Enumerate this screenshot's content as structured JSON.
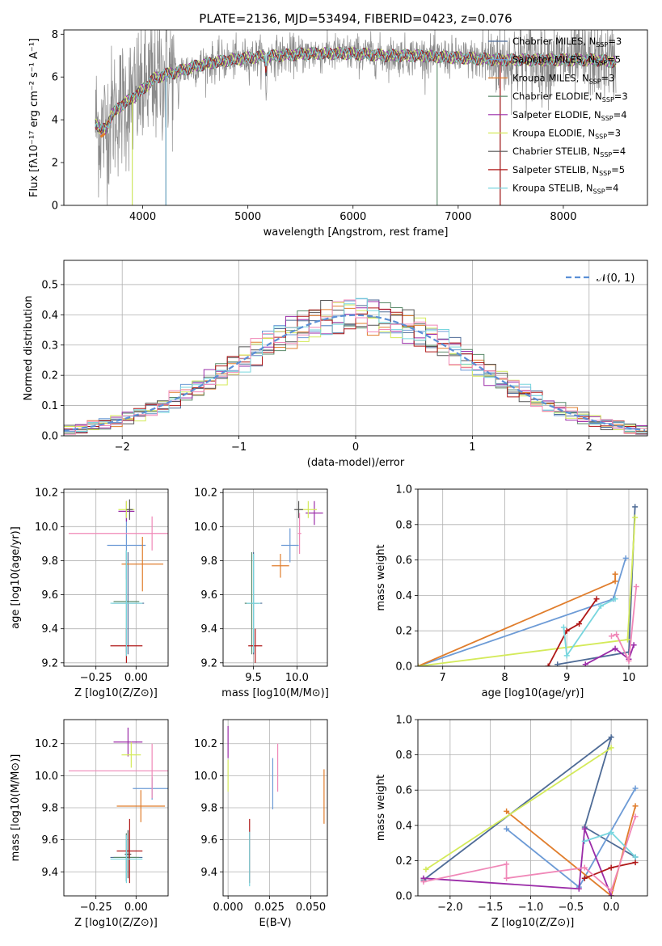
{
  "figure_title": "PLATE=2136, MJD=53494, FIBERID=0423, z=0.076",
  "models": [
    {
      "name": "Chabrier MILES",
      "nssp": "3",
      "color": "#4e6b96"
    },
    {
      "name": "Salpeter MILES",
      "nssp": "5",
      "color": "#6d9bd6"
    },
    {
      "name": "Kroupa MILES",
      "nssp": "3",
      "color": "#e07d2c"
    },
    {
      "name": "Chabrier ELODIE",
      "nssp": "3",
      "color": "#5b8a6a"
    },
    {
      "name": "Salpeter ELODIE",
      "nssp": "4",
      "color": "#9b2ca8"
    },
    {
      "name": "Kroupa ELODIE",
      "nssp": "3",
      "color": "#d4ea5a"
    },
    {
      "name": "Chabrier STELIB",
      "nssp": "4",
      "color": "#555555"
    },
    {
      "name": "Salpeter STELIB",
      "nssp": "5",
      "color": "#b01818"
    },
    {
      "name": "Kroupa STELIB",
      "nssp": "4",
      "color": "#78d6de"
    }
  ],
  "chart_data": [
    {
      "type": "line",
      "id": "spectrum",
      "xlabel": "wavelength [Angstrom, rest frame]",
      "ylabel": "Flux [f_λ 10^-17 erg cm^-2 s^-1 A^-1]",
      "xlim": [
        3250,
        8800
      ],
      "ylim": [
        0,
        8.2
      ],
      "xticks": [
        4000,
        5000,
        6000,
        7000,
        8000
      ],
      "yticks": [
        0,
        2,
        4,
        6,
        8
      ],
      "grid": false,
      "legend": "right",
      "continuum": {
        "x": [
          3550,
          3600,
          3650,
          3700,
          3800,
          3900,
          4000,
          4100,
          4200,
          4300,
          4500,
          4700,
          5000,
          5300,
          5600,
          6000,
          6300,
          6600,
          7000,
          7400,
          7700,
          8000,
          8300,
          8500
        ],
        "y": [
          3.9,
          3.5,
          3.6,
          4.2,
          4.7,
          5.0,
          5.4,
          5.9,
          6.1,
          6.2,
          6.5,
          6.7,
          6.9,
          7.0,
          7.1,
          7.1,
          7.0,
          7.0,
          6.9,
          6.8,
          6.8,
          6.8,
          6.8,
          6.7
        ]
      }
    },
    {
      "type": "bar",
      "id": "residuals",
      "xlabel": "(data-model)/error",
      "ylabel": "Normed distribution",
      "xlim": [
        -2.5,
        2.5
      ],
      "ylim": [
        0,
        0.58
      ],
      "xticks": [
        -2,
        -1,
        0,
        1,
        2
      ],
      "yticks": [
        0.0,
        0.1,
        0.2,
        0.3,
        0.4,
        0.5
      ],
      "grid": true,
      "legend": "top-right",
      "reference_label": "𝒩(0, 1)",
      "bin_width": 0.1
    },
    {
      "type": "scatter",
      "id": "age-vs-Z",
      "xlabel": "Z [log10(Z/Z⊙)]",
      "ylabel": "age  [log10(age/yr)]",
      "xlim": [
        -0.45,
        0.2
      ],
      "ylim": [
        9.18,
        10.22
      ],
      "xticks": [
        -0.25,
        0.0
      ],
      "xticklabels": [
        "−0.25",
        "0.00"
      ],
      "yticks": [
        9.2,
        9.4,
        9.6,
        9.8,
        10.0,
        10.2
      ],
      "grid": true,
      "points": [
        {
          "m": 0,
          "x": -0.05,
          "y": 9.55,
          "ex": 0.1,
          "ey": 0.3
        },
        {
          "m": 1,
          "x": -0.06,
          "y": 9.89,
          "ex": 0.12,
          "ey": 0.2
        },
        {
          "m": 2,
          "x": 0.04,
          "y": 9.78,
          "ex": 0.13,
          "ey": 0.16
        },
        {
          "m": 3,
          "x": -0.06,
          "y": 9.56,
          "ex": 0.08,
          "ey": 0.3
        },
        {
          "m": 4,
          "x": -0.06,
          "y": 10.09,
          "ex": 0.05,
          "ey": 0.06
        },
        {
          "m": 5,
          "x": -0.06,
          "y": 10.1,
          "ex": 0.05,
          "ey": 0.05
        },
        {
          "m": 6,
          "x": -0.04,
          "y": 10.1,
          "ex": 0.02,
          "ey": 0.06
        },
        {
          "m": 7,
          "x": -0.06,
          "y": 9.3,
          "ex": 0.1,
          "ey": 0.1
        },
        {
          "m": 8,
          "x": -0.06,
          "y": 9.55,
          "ex": 0.1,
          "ey": 0.31
        },
        {
          "m": 2,
          "x": 0.1,
          "y": 9.96,
          "ex": 0.52,
          "ey": 0.1,
          "c": "#f088b8"
        }
      ]
    },
    {
      "type": "scatter",
      "id": "age-vs-mass",
      "xlabel": "mass [log10(M/M⊙)]",
      "ylabel": "",
      "xlim": [
        9.15,
        10.35
      ],
      "ylim": [
        9.18,
        10.22
      ],
      "xticks": [
        9.5,
        10.0
      ],
      "xticklabels": [
        "9.5",
        "10.0"
      ],
      "yticks": [
        9.2,
        9.4,
        9.6,
        9.8,
        10.0,
        10.2
      ],
      "grid": true,
      "points": [
        {
          "m": 0,
          "x": 9.5,
          "y": 9.55,
          "ex": 0.1,
          "ey": 0.3
        },
        {
          "m": 1,
          "x": 9.92,
          "y": 9.89,
          "ex": 0.1,
          "ey": 0.1
        },
        {
          "m": 2,
          "x": 9.81,
          "y": 9.77,
          "ex": 0.1,
          "ey": 0.07
        },
        {
          "m": 3,
          "x": 9.48,
          "y": 9.55,
          "ex": 0.08,
          "ey": 0.3
        },
        {
          "m": 4,
          "x": 10.2,
          "y": 10.08,
          "ex": 0.1,
          "ey": 0.07
        },
        {
          "m": 5,
          "x": 10.13,
          "y": 10.1,
          "ex": 0.1,
          "ey": 0.05
        },
        {
          "m": 6,
          "x": 10.02,
          "y": 10.1,
          "ex": 0.05,
          "ey": 0.05
        },
        {
          "m": 7,
          "x": 9.52,
          "y": 9.3,
          "ex": 0.08,
          "ey": 0.1
        },
        {
          "m": 8,
          "x": 9.5,
          "y": 9.55,
          "ex": 0.08,
          "ey": 0.29
        },
        {
          "m": 2,
          "x": 10.03,
          "y": 9.96,
          "ex": 0.02,
          "ey": 0.12,
          "c": "#f088b8"
        }
      ]
    },
    {
      "type": "line",
      "id": "mass-weight-vs-age",
      "xlabel": "age  [log10(age/yr)]",
      "ylabel": "mass weight",
      "xlim": [
        6.6,
        10.3
      ],
      "ylim": [
        0,
        1.0
      ],
      "xticks": [
        7,
        8,
        9,
        10
      ],
      "yticks": [
        0.0,
        0.2,
        0.4,
        0.6,
        0.8,
        1.0
      ],
      "grid": true,
      "series": [
        {
          "m": 0,
          "points": [
            [
              8.85,
              0.01
            ],
            [
              10.0,
              0.08
            ],
            [
              10.1,
              0.9
            ]
          ]
        },
        {
          "m": 1,
          "points": [
            [
              6.6,
              0.0
            ],
            [
              9.75,
              0.38
            ],
            [
              9.95,
              0.61
            ]
          ]
        },
        {
          "m": 2,
          "points": [
            [
              6.6,
              0.0
            ],
            [
              9.78,
              0.48
            ],
            [
              9.78,
              0.52
            ]
          ]
        },
        {
          "m": 4,
          "points": [
            [
              9.3,
              0.01
            ],
            [
              9.78,
              0.1
            ],
            [
              10.0,
              0.04
            ],
            [
              10.08,
              0.12
            ]
          ]
        },
        {
          "m": 5,
          "points": [
            [
              6.6,
              0.0
            ],
            [
              9.98,
              0.15
            ],
            [
              10.1,
              0.84
            ]
          ]
        },
        {
          "m": 7,
          "points": [
            [
              8.7,
              0.0
            ],
            [
              9.0,
              0.2
            ],
            [
              9.2,
              0.24
            ],
            [
              9.48,
              0.38
            ]
          ]
        },
        {
          "m": 8,
          "points": [
            [
              8.95,
              0.22
            ],
            [
              9.0,
              0.06
            ],
            [
              9.55,
              0.34
            ],
            [
              9.78,
              0.38
            ]
          ]
        },
        {
          "m": 2,
          "c": "#f088b8",
          "points": [
            [
              9.72,
              0.17
            ],
            [
              9.8,
              0.18
            ],
            [
              10.0,
              0.03
            ],
            [
              10.12,
              0.45
            ]
          ]
        }
      ]
    },
    {
      "type": "scatter",
      "id": "mass-vs-Z",
      "xlabel": "Z [log10(Z/Z⊙)]",
      "ylabel": "mass [log10(M/M⊙)]",
      "xlim": [
        -0.45,
        0.2
      ],
      "ylim": [
        9.25,
        10.35
      ],
      "xticks": [
        -0.25,
        0.0
      ],
      "xticklabels": [
        "−0.25",
        "0.00"
      ],
      "yticks": [
        9.4,
        9.6,
        9.8,
        10.0,
        10.2
      ],
      "grid": true,
      "points": [
        {
          "m": 0,
          "x": -0.06,
          "y": 9.49,
          "ex": 0.1,
          "ey": 0.15
        },
        {
          "m": 1,
          "x": 0.1,
          "y": 9.92,
          "ex": 0.12,
          "ey": 0.07
        },
        {
          "m": 2,
          "x": 0.03,
          "y": 9.81,
          "ex": 0.15,
          "ey": 0.1
        },
        {
          "m": 3,
          "x": -0.06,
          "y": 9.49,
          "ex": 0.08,
          "ey": 0.15
        },
        {
          "m": 4,
          "x": -0.05,
          "y": 10.21,
          "ex": 0.09,
          "ey": 0.09
        },
        {
          "m": 5,
          "x": -0.03,
          "y": 10.13,
          "ex": 0.06,
          "ey": 0.08
        },
        {
          "m": 6,
          "x": -0.05,
          "y": 9.51,
          "ex": 0.02,
          "ey": 0.15
        },
        {
          "m": 7,
          "x": -0.04,
          "y": 9.53,
          "ex": 0.08,
          "ey": 0.2
        },
        {
          "m": 8,
          "x": -0.06,
          "y": 9.48,
          "ex": 0.1,
          "ey": 0.15
        },
        {
          "m": 2,
          "x": 0.1,
          "y": 10.03,
          "ex": 0.52,
          "ey": 0.17,
          "c": "#f088b8"
        }
      ]
    },
    {
      "type": "scatter",
      "id": "mass-vs-EBV",
      "xlabel": "E(B-V)",
      "ylabel": "",
      "xlim": [
        -0.003,
        0.06
      ],
      "ylim": [
        9.25,
        10.35
      ],
      "xticks": [
        0.0,
        0.025,
        0.05
      ],
      "xticklabels": [
        "0.000",
        "0.025",
        "0.050"
      ],
      "yticks": [
        9.4,
        9.6,
        9.8,
        10.0,
        10.2
      ],
      "grid": true,
      "points": [
        {
          "m": 4,
          "x": 0.0,
          "y": 10.21,
          "ex": 0,
          "ey": 0.1
        },
        {
          "m": 5,
          "x": 0.0,
          "y": 10.0,
          "ex": 0,
          "ey": 0.1
        },
        {
          "m": 7,
          "x": 0.013,
          "y": 9.53,
          "ex": 0,
          "ey": 0.2
        },
        {
          "m": 8,
          "x": 0.013,
          "y": 9.48,
          "ex": 0,
          "ey": 0.17
        },
        {
          "m": 1,
          "x": 0.027,
          "y": 9.95,
          "ex": 0,
          "ey": 0.16
        },
        {
          "m": 2,
          "x": 0.03,
          "y": 10.05,
          "ex": 0,
          "ey": 0.15,
          "c": "#f088b8"
        },
        {
          "m": 2,
          "x": 0.058,
          "y": 9.87,
          "ex": 0,
          "ey": 0.17
        }
      ]
    },
    {
      "type": "line",
      "id": "mass-weight-vs-Z",
      "xlabel": "Z [log10(Z/Z⊙)]",
      "ylabel": "mass weight",
      "xlim": [
        -2.4,
        0.45
      ],
      "ylim": [
        0,
        1.0
      ],
      "xticks": [
        -2.0,
        -1.5,
        -1.0,
        -0.5,
        0.0
      ],
      "xticklabels": [
        "−2.0",
        "−1.5",
        "−1.0",
        "−0.5",
        "0.0"
      ],
      "yticks": [
        0.0,
        0.2,
        0.4,
        0.6,
        0.8,
        1.0
      ],
      "grid": true,
      "series": [
        {
          "m": 0,
          "points": [
            [
              -2.33,
              0.09
            ],
            [
              0.0,
              0.9
            ],
            [
              -0.33,
              0.39
            ],
            [
              0.3,
              0.22
            ]
          ]
        },
        {
          "m": 1,
          "points": [
            [
              -1.3,
              0.38
            ],
            [
              -0.4,
              0.05
            ],
            [
              0.3,
              0.61
            ]
          ]
        },
        {
          "m": 2,
          "points": [
            [
              -1.3,
              0.48
            ],
            [
              0.0,
              0.0
            ],
            [
              0.3,
              0.51
            ]
          ]
        },
        {
          "m": 4,
          "points": [
            [
              -2.33,
              0.1
            ],
            [
              -0.4,
              0.04
            ],
            [
              -0.33,
              0.38
            ],
            [
              0.0,
              0.0
            ]
          ]
        },
        {
          "m": 5,
          "points": [
            [
              -2.3,
              0.15
            ],
            [
              0.0,
              0.84
            ]
          ]
        },
        {
          "m": 7,
          "points": [
            [
              -0.33,
              0.1
            ],
            [
              0.0,
              0.16
            ],
            [
              0.3,
              0.19
            ]
          ]
        },
        {
          "m": 8,
          "points": [
            [
              -0.33,
              0.31
            ],
            [
              0.0,
              0.36
            ],
            [
              0.3,
              0.22
            ]
          ]
        },
        {
          "m": 2,
          "c": "#f088b8",
          "points": [
            [
              -2.33,
              0.08
            ],
            [
              -1.3,
              0.18
            ],
            [
              -1.3,
              0.1
            ],
            [
              -0.33,
              0.16
            ],
            [
              0.0,
              0.03
            ],
            [
              0.3,
              0.45
            ]
          ]
        }
      ]
    }
  ]
}
